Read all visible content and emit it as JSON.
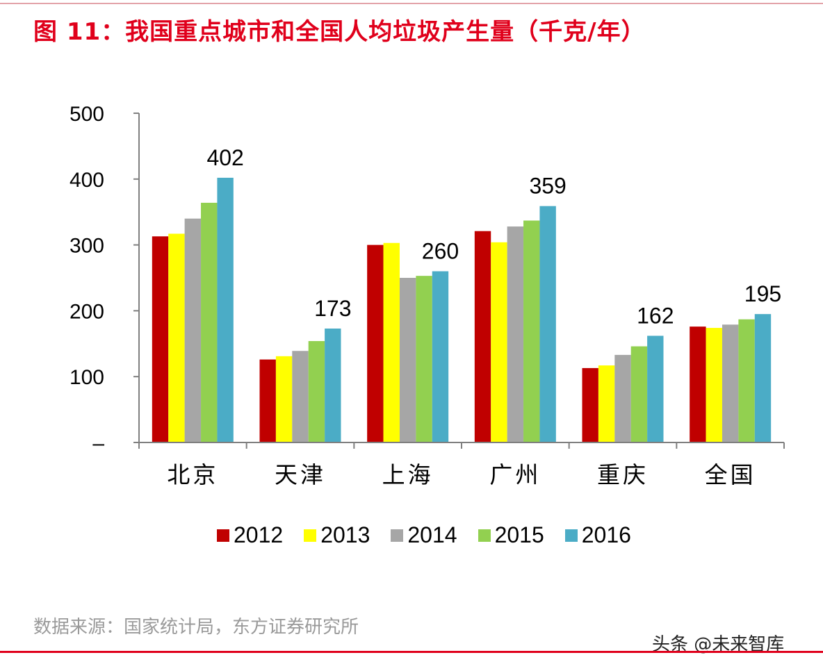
{
  "figure": {
    "title": "图 11：我国重点城市和全国人均垃圾产生量（千克/年）",
    "source": "数据来源：国家统计局，东方证券研究所",
    "watermark": "头条 @未来智库"
  },
  "chart_data": {
    "type": "bar",
    "title": "图 11：我国重点城市和全国人均垃圾产生量（千克/年）",
    "xlabel": "",
    "ylabel": "",
    "ylim": [
      0,
      500
    ],
    "yticks": [
      0,
      100,
      200,
      300,
      400,
      500
    ],
    "ytick_labels": [
      "–",
      "100",
      "200",
      "300",
      "400",
      "500"
    ],
    "categories": [
      "北京",
      "天津",
      "上海",
      "广州",
      "重庆",
      "全国"
    ],
    "series": [
      {
        "name": "2012",
        "color": "#c00000",
        "values": [
          313,
          126,
          300,
          321,
          113,
          176
        ]
      },
      {
        "name": "2013",
        "color": "#ffff00",
        "values": [
          317,
          131,
          303,
          304,
          117,
          174
        ]
      },
      {
        "name": "2014",
        "color": "#a6a6a6",
        "values": [
          340,
          139,
          250,
          328,
          133,
          179
        ]
      },
      {
        "name": "2015",
        "color": "#92d050",
        "values": [
          364,
          154,
          253,
          337,
          146,
          187
        ]
      },
      {
        "name": "2016",
        "color": "#4bacc6",
        "values": [
          402,
          173,
          260,
          359,
          162,
          195
        ]
      }
    ],
    "data_labels": [
      "402",
      "173",
      "260",
      "359",
      "162",
      "195"
    ],
    "legend_position": "bottom",
    "grid": false
  }
}
